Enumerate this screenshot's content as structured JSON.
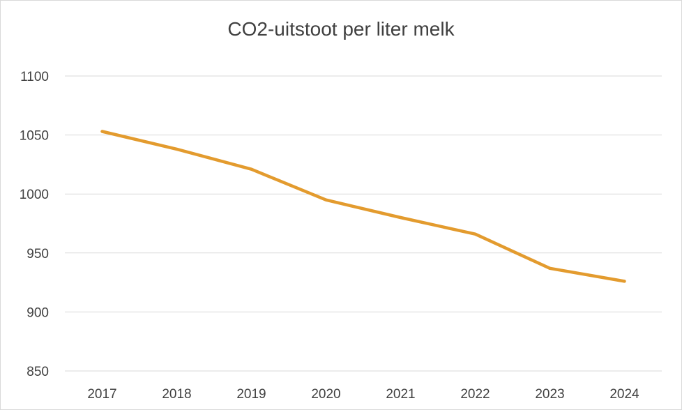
{
  "chart_data": {
    "type": "line",
    "title": "CO2-uitstoot per liter melk",
    "xlabel": "",
    "ylabel": "",
    "categories": [
      "2017",
      "2018",
      "2019",
      "2020",
      "2021",
      "2022",
      "2023",
      "2024"
    ],
    "series": [
      {
        "name": "CO2-uitstoot per liter melk",
        "values": [
          1053,
          1038,
          1021,
          995,
          980,
          966,
          937,
          926
        ]
      }
    ],
    "ylim": [
      850,
      1100
    ],
    "yticks": [
      "850",
      "900",
      "950",
      "1000",
      "1050",
      "1100"
    ],
    "grid": true,
    "legend": "none",
    "colors": {
      "line": "#e39b2e",
      "grid": "#d9d9d9",
      "text": "#404040"
    }
  }
}
